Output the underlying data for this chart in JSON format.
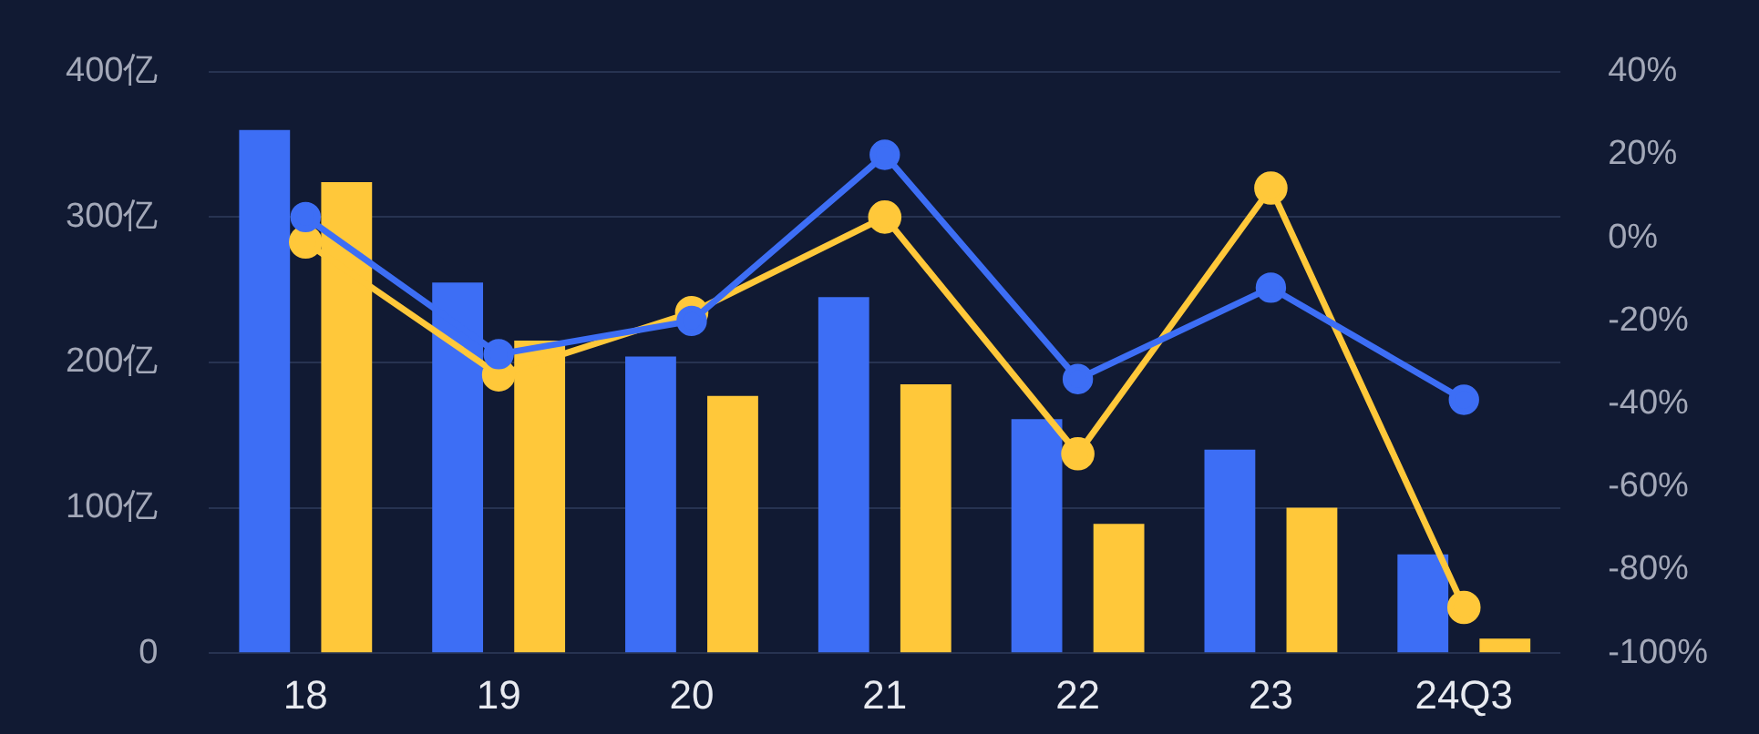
{
  "chart_data": {
    "type": "bar",
    "categories": [
      "18",
      "19",
      "20",
      "21",
      "22",
      "23",
      "24Q3"
    ],
    "series": [
      {
        "color": "#3d6ef5",
        "values": [
          360,
          255,
          204,
          245,
          161,
          140,
          68
        ]
      },
      {
        "color": "#ffc83a",
        "values": [
          324,
          215,
          177,
          185,
          89,
          100,
          10
        ]
      },
      {
        "type": "line",
        "axis": "y2",
        "color": "#3d6ef5",
        "values": [
          5,
          -28,
          -20,
          20,
          -34,
          -12,
          -39
        ]
      },
      {
        "type": "line",
        "axis": "y2",
        "color": "#ffc83a",
        "values": [
          -1,
          -33,
          -18,
          5,
          -52,
          12,
          -89
        ]
      }
    ],
    "ylim": [
      0,
      400
    ],
    "yticks": [
      {
        "value": 0,
        "label": "0"
      },
      {
        "value": 100,
        "label": "100亿"
      },
      {
        "value": 200,
        "label": "200亿"
      },
      {
        "value": 300,
        "label": "300亿"
      },
      {
        "value": 400,
        "label": "400亿"
      }
    ],
    "y2lim": [
      -100,
      40
    ],
    "y2ticks": [
      {
        "value": -100,
        "label": "-100%"
      },
      {
        "value": -80,
        "label": "-80%"
      },
      {
        "value": -60,
        "label": "-60%"
      },
      {
        "value": -40,
        "label": "-40%"
      },
      {
        "value": -20,
        "label": "-20%"
      },
      {
        "value": 0,
        "label": "0%"
      },
      {
        "value": 20,
        "label": "20%"
      },
      {
        "value": 40,
        "label": "40%"
      }
    ],
    "grid": "y",
    "legend": false,
    "marker": "circle"
  }
}
